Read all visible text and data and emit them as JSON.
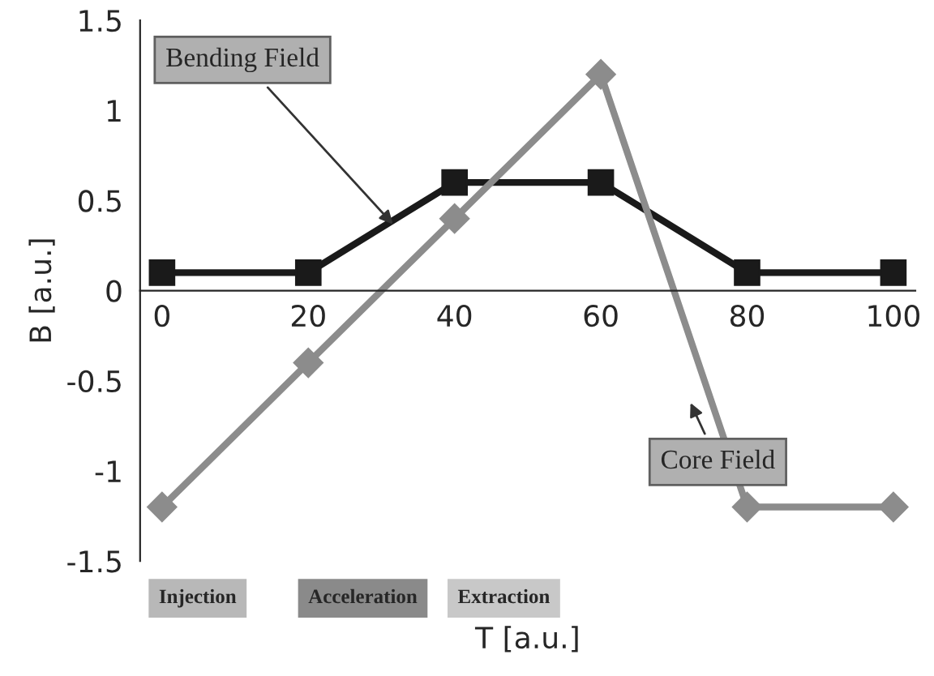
{
  "chart_data": {
    "type": "line",
    "xlabel": "T [a.u.]",
    "ylabel": "B [a.u.]",
    "x": [
      0,
      20,
      40,
      60,
      80,
      100
    ],
    "series": [
      {
        "name": "Bending Field",
        "color": "#1a1a1a",
        "marker": "square",
        "values": [
          0.1,
          0.1,
          0.6,
          0.6,
          0.1,
          0.1
        ]
      },
      {
        "name": "Core Field",
        "color": "#8c8c8c",
        "marker": "diamond",
        "values": [
          -1.2,
          -0.4,
          0.4,
          1.2,
          -1.2,
          -1.2
        ]
      }
    ],
    "xlim": [
      -3,
      103
    ],
    "xticks": [
      0,
      20,
      40,
      60,
      80,
      100
    ],
    "ylim": [
      -1.5,
      1.5
    ],
    "yticks": [
      -1.5,
      -1,
      -0.5,
      0,
      0.5,
      1,
      1.5
    ],
    "grid": false,
    "legend": false,
    "line_style": "solid",
    "annotations": [
      "Injection",
      "Acceleration",
      "Extraction"
    ]
  }
}
